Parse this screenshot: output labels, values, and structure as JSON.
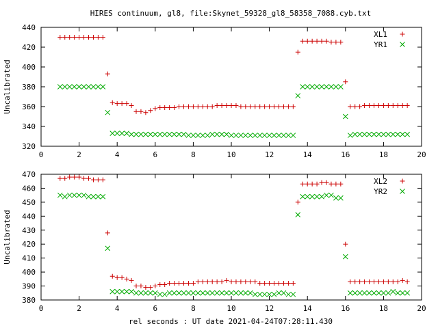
{
  "figure": {
    "title": "HIRES continuum, gl8, file:Skynet_59328_gl8_58358_7088.cyb.txt",
    "xlabel": "rel seconds : UT date 2021-04-24T07:28:11.430"
  },
  "chart_data": [
    {
      "type": "scatter",
      "ylabel": "Uncalibrated",
      "xlim": [
        0,
        20
      ],
      "ylim": [
        320,
        440
      ],
      "x_ticks": [
        0,
        2,
        4,
        6,
        8,
        10,
        12,
        14,
        16,
        18,
        20
      ],
      "y_ticks": [
        320,
        340,
        360,
        380,
        400,
        420,
        440
      ],
      "grid": false,
      "legend": "top-right",
      "series": [
        {
          "name": "XL1",
          "marker": "plus",
          "color": "#cc0000",
          "x": [
            1.0,
            1.25,
            1.5,
            1.75,
            2.0,
            2.25,
            2.5,
            2.75,
            3.0,
            3.25,
            3.5,
            3.75,
            4.0,
            4.25,
            4.5,
            4.75,
            5.0,
            5.25,
            5.5,
            5.75,
            6.0,
            6.25,
            6.5,
            6.75,
            7.0,
            7.25,
            7.5,
            7.75,
            8.0,
            8.25,
            8.5,
            8.75,
            9.0,
            9.25,
            9.5,
            9.75,
            10.0,
            10.25,
            10.5,
            10.75,
            11.0,
            11.25,
            11.5,
            11.75,
            12.0,
            12.25,
            12.5,
            12.75,
            13.0,
            13.25,
            13.5,
            13.75,
            14.0,
            14.25,
            14.5,
            14.75,
            15.0,
            15.25,
            15.5,
            15.75,
            16.0,
            16.25,
            16.5,
            16.75,
            17.0,
            17.25,
            17.5,
            17.75,
            18.0,
            18.25,
            18.5,
            18.75,
            19.0,
            19.25
          ],
          "y": [
            430,
            430,
            430,
            430,
            430,
            430,
            430,
            430,
            430,
            430,
            393,
            364,
            363,
            363,
            363,
            361,
            355,
            355,
            354,
            356,
            358,
            359,
            359,
            359,
            359,
            360,
            360,
            360,
            360,
            360,
            360,
            360,
            360,
            361,
            361,
            361,
            361,
            361,
            360,
            360,
            360,
            360,
            360,
            360,
            360,
            360,
            360,
            360,
            360,
            360,
            415,
            426,
            426,
            426,
            426,
            426,
            426,
            425,
            425,
            425,
            385,
            360,
            360,
            360,
            361,
            361,
            361,
            361,
            361,
            361,
            361,
            361,
            361,
            361
          ]
        },
        {
          "name": "YR1",
          "marker": "cross",
          "color": "#00aa00",
          "x": [
            1.0,
            1.25,
            1.5,
            1.75,
            2.0,
            2.25,
            2.5,
            2.75,
            3.0,
            3.25,
            3.5,
            3.75,
            4.0,
            4.25,
            4.5,
            4.75,
            5.0,
            5.25,
            5.5,
            5.75,
            6.0,
            6.25,
            6.5,
            6.75,
            7.0,
            7.25,
            7.5,
            7.75,
            8.0,
            8.25,
            8.5,
            8.75,
            9.0,
            9.25,
            9.5,
            9.75,
            10.0,
            10.25,
            10.5,
            10.75,
            11.0,
            11.25,
            11.5,
            11.75,
            12.0,
            12.25,
            12.5,
            12.75,
            13.0,
            13.25,
            13.5,
            13.75,
            14.0,
            14.25,
            14.5,
            14.75,
            15.0,
            15.25,
            15.5,
            15.75,
            16.0,
            16.25,
            16.5,
            16.75,
            17.0,
            17.25,
            17.5,
            17.75,
            18.0,
            18.25,
            18.5,
            18.75,
            19.0,
            19.25
          ],
          "y": [
            380,
            380,
            380,
            380,
            380,
            380,
            380,
            380,
            380,
            380,
            354,
            333,
            333,
            333,
            333,
            332,
            332,
            332,
            332,
            332,
            332,
            332,
            332,
            332,
            332,
            332,
            332,
            331,
            331,
            331,
            331,
            331,
            332,
            332,
            332,
            332,
            331,
            331,
            331,
            331,
            331,
            331,
            331,
            331,
            331,
            331,
            331,
            331,
            331,
            331,
            371,
            380,
            380,
            380,
            380,
            380,
            380,
            380,
            380,
            380,
            350,
            331,
            332,
            332,
            332,
            332,
            332,
            332,
            332,
            332,
            332,
            332,
            332,
            332
          ]
        }
      ]
    },
    {
      "type": "scatter",
      "ylabel": "Uncalibrated",
      "xlim": [
        0,
        20
      ],
      "ylim": [
        380,
        470
      ],
      "x_ticks": [
        0,
        2,
        4,
        6,
        8,
        10,
        12,
        14,
        16,
        18,
        20
      ],
      "y_ticks": [
        380,
        390,
        400,
        410,
        420,
        430,
        440,
        450,
        460,
        470
      ],
      "grid": false,
      "legend": "top-right",
      "series": [
        {
          "name": "XL2",
          "marker": "plus",
          "color": "#cc0000",
          "x": [
            1.0,
            1.25,
            1.5,
            1.75,
            2.0,
            2.25,
            2.5,
            2.75,
            3.0,
            3.25,
            3.5,
            3.75,
            4.0,
            4.25,
            4.5,
            4.75,
            5.0,
            5.25,
            5.5,
            5.75,
            6.0,
            6.25,
            6.5,
            6.75,
            7.0,
            7.25,
            7.5,
            7.75,
            8.0,
            8.25,
            8.5,
            8.75,
            9.0,
            9.25,
            9.5,
            9.75,
            10.0,
            10.25,
            10.5,
            10.75,
            11.0,
            11.25,
            11.5,
            11.75,
            12.0,
            12.25,
            12.5,
            12.75,
            13.0,
            13.25,
            13.5,
            13.75,
            14.0,
            14.25,
            14.5,
            14.75,
            15.0,
            15.25,
            15.5,
            15.75,
            16.0,
            16.25,
            16.5,
            16.75,
            17.0,
            17.25,
            17.5,
            17.75,
            18.0,
            18.25,
            18.5,
            18.75,
            19.0,
            19.25
          ],
          "y": [
            467,
            467,
            468,
            468,
            468,
            467,
            467,
            466,
            466,
            466,
            428,
            397,
            396,
            396,
            395,
            394,
            390,
            390,
            389,
            389,
            390,
            391,
            391,
            392,
            392,
            392,
            392,
            392,
            392,
            393,
            393,
            393,
            393,
            393,
            393,
            394,
            393,
            393,
            393,
            393,
            393,
            393,
            392,
            392,
            392,
            392,
            392,
            392,
            392,
            392,
            450,
            463,
            463,
            463,
            463,
            464,
            464,
            463,
            463,
            463,
            420,
            393,
            393,
            393,
            393,
            393,
            393,
            393,
            393,
            393,
            393,
            393,
            394,
            393
          ]
        },
        {
          "name": "YR2",
          "marker": "cross",
          "color": "#00aa00",
          "x": [
            1.0,
            1.25,
            1.5,
            1.75,
            2.0,
            2.25,
            2.5,
            2.75,
            3.0,
            3.25,
            3.5,
            3.75,
            4.0,
            4.25,
            4.5,
            4.75,
            5.0,
            5.25,
            5.5,
            5.75,
            6.0,
            6.25,
            6.5,
            6.75,
            7.0,
            7.25,
            7.5,
            7.75,
            8.0,
            8.25,
            8.5,
            8.75,
            9.0,
            9.25,
            9.5,
            9.75,
            10.0,
            10.25,
            10.5,
            10.75,
            11.0,
            11.25,
            11.5,
            11.75,
            12.0,
            12.25,
            12.5,
            12.75,
            13.0,
            13.25,
            13.5,
            13.75,
            14.0,
            14.25,
            14.5,
            14.75,
            15.0,
            15.25,
            15.5,
            15.75,
            16.0,
            16.25,
            16.5,
            16.75,
            17.0,
            17.25,
            17.5,
            17.75,
            18.0,
            18.25,
            18.5,
            18.75,
            19.0,
            19.25
          ],
          "y": [
            455,
            454,
            455,
            455,
            455,
            455,
            454,
            454,
            454,
            454,
            417,
            386,
            386,
            386,
            386,
            386,
            385,
            385,
            385,
            385,
            385,
            384,
            384,
            385,
            385,
            385,
            385,
            385,
            385,
            385,
            385,
            385,
            385,
            385,
            385,
            385,
            385,
            385,
            385,
            385,
            385,
            384,
            384,
            384,
            384,
            384,
            385,
            385,
            384,
            384,
            441,
            454,
            454,
            454,
            454,
            454,
            455,
            455,
            453,
            453,
            411,
            385,
            385,
            385,
            385,
            385,
            385,
            385,
            385,
            385,
            386,
            385,
            385,
            385
          ]
        }
      ]
    }
  ]
}
